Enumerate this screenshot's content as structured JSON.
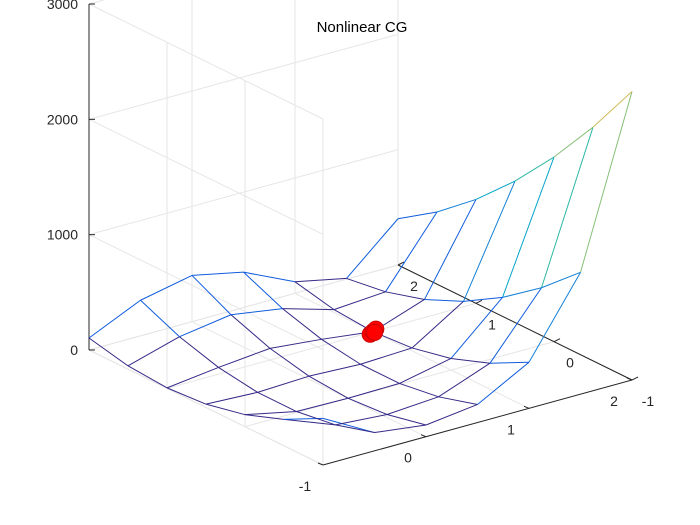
{
  "chart_data": {
    "type": "surface",
    "title": "Nonlinear CG",
    "xlabel": "",
    "ylabel": "",
    "zlabel": "",
    "x": [
      -1,
      -0.5,
      0,
      0.5,
      1,
      1.5,
      2
    ],
    "y": [
      -1,
      -0.5,
      0,
      0.5,
      1,
      1.5,
      2
    ],
    "xlim": [
      -1,
      2
    ],
    "ylim": [
      -1,
      2
    ],
    "zlim": [
      0,
      3000
    ],
    "x_ticks": [
      "-1",
      "0",
      "1",
      "2"
    ],
    "y_ticks": [
      "-1",
      "0",
      "1",
      "2"
    ],
    "z_ticks": [
      "0",
      "1000",
      "2000",
      "3000"
    ],
    "grid": true,
    "colormap": [
      "#352a87",
      "#0f5cdd",
      "#1481d6",
      "#06a4ca",
      "#2eb7a4",
      "#87bf77",
      "#d1bb59",
      "#fec832",
      "#f9fb0e"
    ],
    "point_color": "#ff0000",
    "iterates": [
      {
        "x": 0.95,
        "y": 0.97,
        "z": 0
      },
      {
        "x": 1.0,
        "y": 1.0,
        "z": 0
      },
      {
        "x": 1.05,
        "y": 1.03,
        "z": 0
      },
      {
        "x": 1.0,
        "y": 0.98,
        "z": 0
      }
    ]
  }
}
